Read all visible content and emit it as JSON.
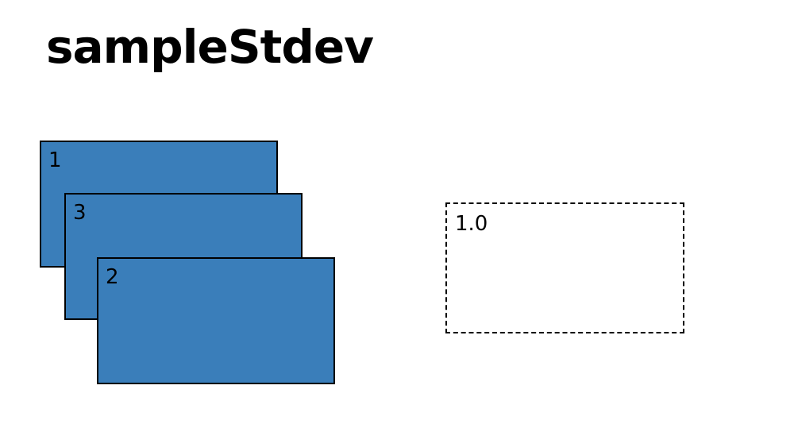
{
  "title": "sampleStdev",
  "colors": {
    "card_fill": "#3a7eba",
    "card_border": "#000000",
    "result_border": "#000000",
    "text": "#000000"
  },
  "input_cards": [
    {
      "label": "1"
    },
    {
      "label": "3"
    },
    {
      "label": "2"
    }
  ],
  "result": {
    "label": "1.0"
  }
}
